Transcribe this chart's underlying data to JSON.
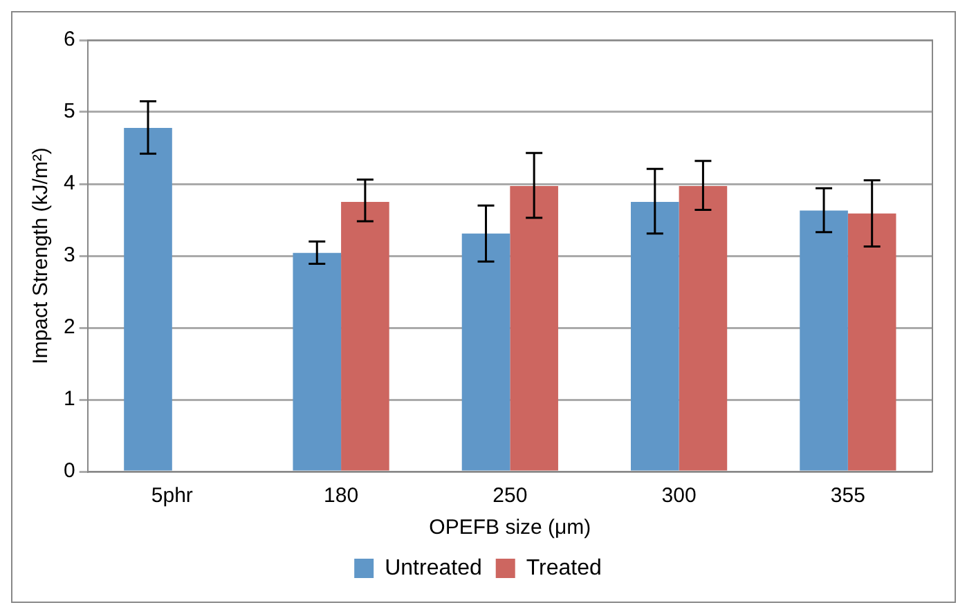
{
  "chart_data": {
    "type": "bar",
    "xlabel": "OPEFB size (μm)",
    "ylabel": "Impact Strength (kJ/m²)",
    "categories": [
      "5phr",
      "180",
      "250",
      "300",
      "355"
    ],
    "series": [
      {
        "name": "Untreated",
        "color": "#6097c8",
        "values": [
          4.78,
          3.04,
          3.31,
          3.75,
          3.63
        ],
        "errors": [
          [
            4.42,
            5.15
          ],
          [
            2.89,
            3.2
          ],
          [
            2.92,
            3.7
          ],
          [
            3.31,
            4.21
          ],
          [
            3.33,
            3.94
          ]
        ]
      },
      {
        "name": "Treated",
        "color": "#cd6660",
        "values": [
          null,
          3.75,
          3.97,
          3.97,
          3.59
        ],
        "errors": [
          null,
          [
            3.48,
            4.06
          ],
          [
            3.53,
            4.43
          ],
          [
            3.64,
            4.32
          ],
          [
            3.13,
            4.05
          ]
        ]
      }
    ],
    "ylim": [
      0,
      6
    ],
    "yticks": [
      0,
      1,
      2,
      3,
      4,
      5,
      6
    ],
    "grid": "y",
    "legend": "bottom"
  }
}
